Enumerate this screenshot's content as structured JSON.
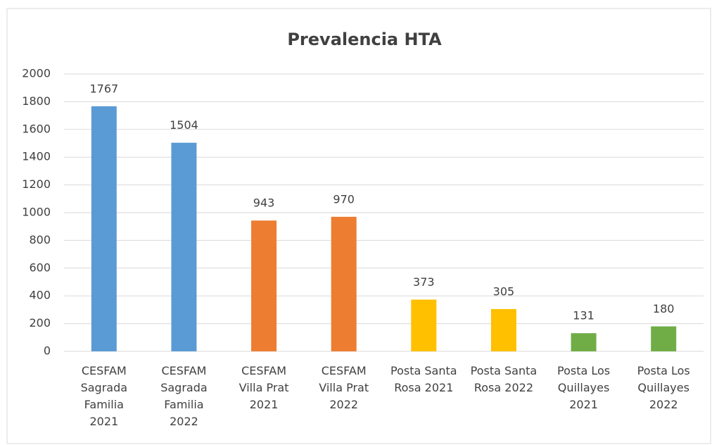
{
  "chart_data": {
    "type": "bar",
    "title": "Prevalencia HTA",
    "categories": [
      "CESFAM Sagrada Familia 2021",
      "CESFAM Sagrada Familia 2022",
      "CESFAM Villa Prat 2021",
      "CESFAM Villa Prat 2022",
      "Posta Santa Rosa 2021",
      "Posta Santa Rosa 2022",
      "Posta Los Quillayes 2021",
      "Posta Los Quillayes 2022"
    ],
    "values": [
      1767,
      1504,
      943,
      970,
      373,
      305,
      131,
      180
    ],
    "colors": [
      "#5b9bd5",
      "#5b9bd5",
      "#ed7d31",
      "#ed7d31",
      "#ffc000",
      "#ffc000",
      "#70ad47",
      "#70ad47"
    ],
    "ylim": [
      0,
      2000
    ],
    "yticks": [
      0,
      200,
      400,
      600,
      800,
      1000,
      1200,
      1400,
      1600,
      1800,
      2000
    ],
    "grid": true
  }
}
